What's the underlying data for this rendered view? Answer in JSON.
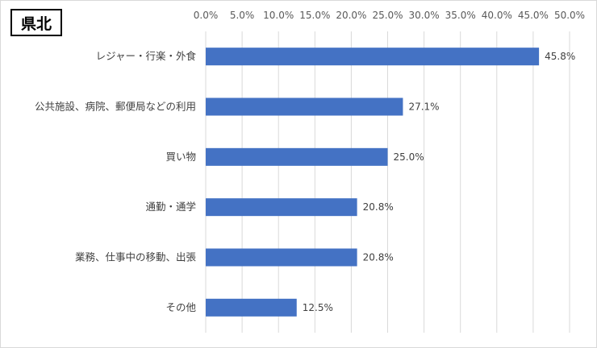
{
  "region_label": "県北",
  "chart_data": {
    "type": "bar",
    "orientation": "horizontal",
    "title": "",
    "xlabel": "",
    "ylabel": "",
    "categories": [
      "レジャー・行楽・外食",
      "公共施設、病院、郵便局などの利用",
      "買い物",
      "通勤・通学",
      "業務、仕事中の移動、出張",
      "その他"
    ],
    "values": [
      45.8,
      27.1,
      25.0,
      20.8,
      20.8,
      12.5
    ],
    "data_labels": [
      "45.8%",
      "27.1%",
      "25.0%",
      "20.8%",
      "20.8%",
      "12.5%"
    ],
    "xlim": [
      0,
      50
    ],
    "x_ticks": [
      0,
      5,
      10,
      15,
      20,
      25,
      30,
      35,
      40,
      45,
      50
    ],
    "x_tick_labels": [
      "0.0%",
      "5.0%",
      "10.0%",
      "15.0%",
      "20.0%",
      "25.0%",
      "30.0%",
      "35.0%",
      "40.0%",
      "45.0%",
      "50.0%"
    ],
    "axis_position": "top",
    "grid": true,
    "legend": "none",
    "bar_color": "#4472c4",
    "grid_color": "#d9d9d9"
  }
}
